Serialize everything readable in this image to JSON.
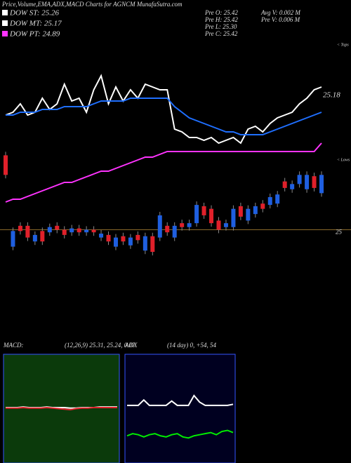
{
  "chart_data": [
    {
      "type": "candlestick",
      "title": "Price,Volume,EMA,ADX,MACD Charts for AGNCM MunafaSutra.com",
      "legend": [
        {
          "label": "DOW ST: 25.26",
          "color": "#ffffff"
        },
        {
          "label": "DOW MT: 25.17",
          "color": "#ffffff"
        },
        {
          "label": "DOW PT: 24.89",
          "color": "#ff33ff"
        }
      ],
      "info": [
        "Pre  O: 25.42",
        "Pre  H: 25.42",
        "Pre  L: 25.30",
        "Pre  C: 25.42",
        "Avg  V: 0.002  M",
        "Pre  V: 0.006  M"
      ],
      "annotations": [
        "< Tops",
        "< Lows"
      ],
      "up_color": "#1f5fe0",
      "down_color": "#e0202a",
      "open": [
        25.57,
        24.87,
        25.03,
        25.03,
        24.91,
        24.99,
        24.98,
        25.03,
        25.0,
        24.98,
        25.01,
        24.98,
        25.0,
        24.94,
        24.96,
        24.87,
        24.95,
        24.88,
        24.96,
        24.84,
        24.95,
        24.94,
        25.03,
        24.94,
        25.05,
        25.02,
        25.05,
        25.18,
        25.16,
        25.07,
        25.02,
        25.02,
        25.18,
        25.07,
        25.12,
        25.2,
        25.19,
        25.2,
        25.37,
        25.31,
        25.35,
        25.31,
        25.41,
        25.28
      ],
      "close": [
        25.42,
        24.99,
        24.99,
        24.94,
        24.96,
        24.91,
        25.02,
        25.0,
        24.96,
        25.01,
        24.98,
        25.0,
        24.98,
        24.97,
        24.91,
        24.94,
        24.91,
        24.94,
        24.92,
        24.95,
        24.83,
        25.11,
        24.98,
        25.03,
        25.02,
        25.05,
        25.19,
        25.11,
        25.05,
        25.0,
        25.05,
        25.16,
        25.1,
        25.16,
        25.18,
        25.16,
        25.25,
        25.27,
        25.32,
        25.35,
        25.42,
        25.42,
        25.32,
        25.42
      ],
      "ylim": [
        24.18,
        26.76
      ],
      "yticks": [
        25
      ],
      "y2lim": [
        24.32,
        25.52
      ],
      "y2ticks": [
        25.18
      ],
      "series": [
        {
          "color": "#ffffff",
          "axis": "y2",
          "values": [
            25.11,
            25.12,
            25.15,
            25.11,
            25.12,
            25.17,
            25.13,
            25.15,
            25.22,
            25.16,
            25.17,
            25.12,
            25.2,
            25.25,
            25.15,
            25.21,
            25.16,
            25.2,
            25.17,
            25.22,
            25.21,
            25.2,
            25.2,
            25.06,
            25.05,
            25.03,
            25.03,
            25.02,
            25.03,
            25.01,
            25.02,
            25.03,
            25.01,
            25.06,
            25.07,
            25.05,
            25.08,
            25.1,
            25.11,
            25.12,
            25.15,
            25.17,
            25.2,
            25.21
          ]
        },
        {
          "color": "#1f6fff",
          "axis": "y2",
          "values": [
            25.11,
            25.11,
            25.12,
            25.12,
            25.12,
            25.13,
            25.13,
            25.13,
            25.14,
            25.14,
            25.14,
            25.14,
            25.15,
            25.16,
            25.16,
            25.16,
            25.16,
            25.17,
            25.17,
            25.17,
            25.17,
            25.17,
            25.17,
            25.14,
            25.12,
            25.1,
            25.09,
            25.08,
            25.07,
            25.06,
            25.05,
            25.05,
            25.04,
            25.04,
            25.04,
            25.04,
            25.05,
            25.06,
            25.07,
            25.08,
            25.09,
            25.1,
            25.11,
            25.12
          ]
        },
        {
          "color": "#ff33ff",
          "axis": "y2",
          "values": [
            24.8,
            24.81,
            24.81,
            24.82,
            24.83,
            24.84,
            24.85,
            24.86,
            24.87,
            24.87,
            24.88,
            24.89,
            24.9,
            24.91,
            24.91,
            24.92,
            24.93,
            24.94,
            24.95,
            24.96,
            24.96,
            24.97,
            24.98,
            24.98,
            24.98,
            24.98,
            24.98,
            24.98,
            24.98,
            24.98,
            24.98,
            24.98,
            24.98,
            24.98,
            24.98,
            24.98,
            24.98,
            24.98,
            24.98,
            24.98,
            24.98,
            24.98,
            24.98,
            25.01
          ]
        }
      ]
    },
    {
      "type": "line",
      "title": "MACD:",
      "subtitle": "(12,26,9) 25.31, 25.24, 0.07",
      "background": "#0b3a0b",
      "ylim": [
        -1,
        1
      ],
      "series": [
        {
          "color": "#ffffff",
          "values": [
            0.02,
            0.02,
            0.02,
            0.03,
            0.02,
            0.02,
            0.02,
            0.03,
            0.02,
            0.02,
            0.02,
            0.01,
            0.01,
            0.02,
            0.02,
            0.02,
            0.03,
            0.03,
            0.03,
            0.03
          ]
        },
        {
          "color": "#e0202a",
          "values": [
            0.01,
            0.01,
            0.01,
            0.02,
            0.01,
            0.01,
            0.01,
            0.02,
            0.01,
            0.0,
            -0.01,
            -0.02,
            0.0,
            0.01,
            0.01,
            0.02,
            0.02,
            0.02,
            0.02,
            0.02
          ]
        }
      ]
    },
    {
      "type": "line",
      "title": "ADX",
      "subtitle": "(14  day) 0, +54, 54",
      "background": "#000020",
      "ylim": [
        0,
        100
      ],
      "series": [
        {
          "color": "#ffffff",
          "values": [
            53,
            53,
            53,
            58,
            53,
            53,
            53,
            53,
            57,
            53,
            53,
            53,
            62,
            56,
            53,
            53,
            53,
            53,
            53,
            54
          ]
        },
        {
          "color": "#00ee00",
          "values": [
            25,
            27,
            26,
            24,
            26,
            27,
            25,
            24,
            26,
            27,
            24,
            23,
            25,
            26,
            27,
            28,
            26,
            29,
            30,
            28
          ]
        }
      ]
    }
  ]
}
